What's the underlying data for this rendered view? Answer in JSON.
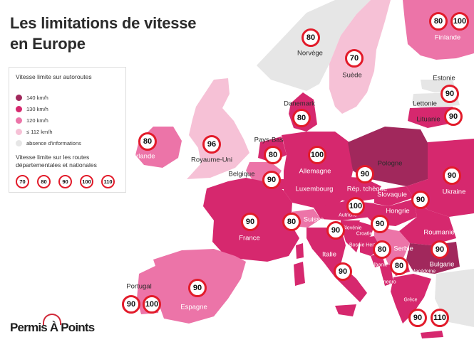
{
  "title": {
    "line1": "Les limitations de vitesse",
    "line2": "en Europe"
  },
  "legend": {
    "heading": "Vitesse limite sur autoroutes",
    "items": [
      {
        "label": "140 km/h",
        "color": "#a1285c"
      },
      {
        "label": "130 km/h",
        "color": "#d6286e"
      },
      {
        "label": "120 km/h",
        "color": "#ec74a8"
      },
      {
        "label": "≤ 112 km/h",
        "color": "#f6c1d6"
      },
      {
        "label": "absence d'informations",
        "color": "#e6e6e6"
      }
    ],
    "secondary_heading": "Vitesse limite sur les routes départementales et nationales",
    "secondary_values": [
      "70",
      "80",
      "90",
      "100",
      "110"
    ]
  },
  "countries": [
    {
      "id": "norvege",
      "name": "Norvège",
      "motorway_class": "no-info"
    },
    {
      "id": "suede",
      "name": "Suède",
      "motorway_class": "≤ 112 km/h"
    },
    {
      "id": "finlande",
      "name": "Finlande",
      "motorway_class": "120 km/h"
    },
    {
      "id": "estonie",
      "name": "Estonie",
      "motorway_class": "no-info"
    },
    {
      "id": "lettonie",
      "name": "Lettonie",
      "motorway_class": "no-info"
    },
    {
      "id": "lituanie",
      "name": "Lituanie",
      "motorway_class": "130 km/h"
    },
    {
      "id": "danemark",
      "name": "Danemark",
      "motorway_class": "130 km/h"
    },
    {
      "id": "irlande",
      "name": "Irlande",
      "motorway_class": "120 km/h"
    },
    {
      "id": "royaume-uni",
      "name": "Royaume-Uni",
      "motorway_class": "≤ 112 km/h"
    },
    {
      "id": "pays-bas",
      "name": "Pays-Bas",
      "motorway_class": "130 km/h"
    },
    {
      "id": "belgique",
      "name": "Belgique",
      "motorway_class": "120 km/h"
    },
    {
      "id": "luxembourg",
      "name": "Luxembourg",
      "motorway_class": "130 km/h"
    },
    {
      "id": "allemagne",
      "name": "Allemagne",
      "motorway_class": "130 km/h"
    },
    {
      "id": "pologne",
      "name": "Pologne",
      "motorway_class": "140 km/h"
    },
    {
      "id": "rep-tcheque",
      "name": "Rép. tchèque",
      "motorway_class": "130 km/h"
    },
    {
      "id": "slovaquie",
      "name": "Slovaquie",
      "motorway_class": "130 km/h"
    },
    {
      "id": "ukraine",
      "name": "Ukraine",
      "motorway_class": "130 km/h"
    },
    {
      "id": "france",
      "name": "France",
      "motorway_class": "130 km/h"
    },
    {
      "id": "suisse",
      "name": "Suisse",
      "motorway_class": "120 km/h"
    },
    {
      "id": "autriche",
      "name": "Autriche",
      "motorway_class": "130 km/h"
    },
    {
      "id": "hongrie",
      "name": "Hongrie",
      "motorway_class": "130 km/h"
    },
    {
      "id": "roumanie",
      "name": "Roumanie",
      "motorway_class": "130 km/h"
    },
    {
      "id": "slovenie",
      "name": "Slovénie",
      "motorway_class": "130 km/h"
    },
    {
      "id": "croatie",
      "name": "Croatie",
      "motorway_class": "130 km/h"
    },
    {
      "id": "bosnie-herz",
      "name": "Bosnie Herz.",
      "motorway_class": "130 km/h"
    },
    {
      "id": "serbie",
      "name": "Serbie",
      "motorway_class": "120 km/h"
    },
    {
      "id": "albanie",
      "name": "Albanie",
      "motorway_class": "130 km/h"
    },
    {
      "id": "montenegro",
      "name": "Montenegro",
      "motorway_class": "130 km/h"
    },
    {
      "id": "macedoine",
      "name": "Macédoine",
      "motorway_class": "130 km/h"
    },
    {
      "id": "bulgarie",
      "name": "Bulgarie",
      "motorway_class": "140 km/h"
    },
    {
      "id": "italie",
      "name": "Italie",
      "motorway_class": "130 km/h"
    },
    {
      "id": "grece",
      "name": "Grèce",
      "motorway_class": "130 km/h"
    },
    {
      "id": "espagne",
      "name": "Espagne",
      "motorway_class": "120 km/h"
    },
    {
      "id": "portugal",
      "name": "Portugal",
      "motorway_class": "120 km/h"
    }
  ],
  "signs": {
    "norvege": "80",
    "suede": "70",
    "finlande_a": "80",
    "finlande_b": "100",
    "lettonie": "90",
    "lituanie": "90",
    "danemark": "80",
    "irlande": "80",
    "royaume_uni": "96",
    "pays_bas": "80",
    "belgique": "90",
    "allemagne": "100",
    "rep_tcheque": "90",
    "ukraine": "90",
    "slovaquie": "90",
    "autriche": "100",
    "hongrie": "90",
    "france": "90",
    "suisse": "80",
    "slovenie": "90",
    "bosnie": "80",
    "albanie": "80",
    "roumanie": "90",
    "italie": "90",
    "espagne": "90",
    "portugal_a": "90",
    "portugal_b": "100",
    "grece_a": "90",
    "grece_b": "110"
  },
  "brand": {
    "name": "Permis À Points"
  }
}
